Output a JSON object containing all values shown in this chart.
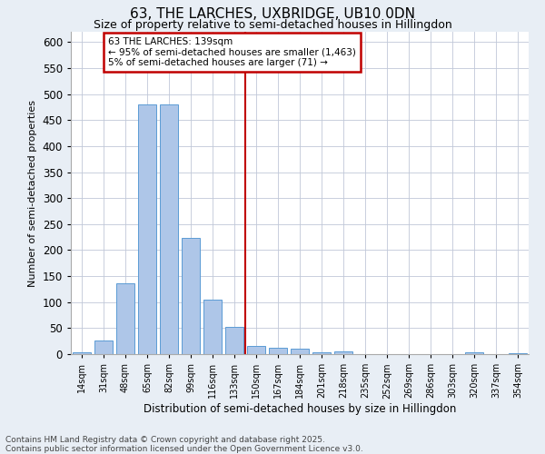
{
  "title": "63, THE LARCHES, UXBRIDGE, UB10 0DN",
  "subtitle": "Size of property relative to semi-detached houses in Hillingdon",
  "xlabel": "Distribution of semi-detached houses by size in Hillingdon",
  "ylabel": "Number of semi-detached properties",
  "categories": [
    "14sqm",
    "31sqm",
    "48sqm",
    "65sqm",
    "82sqm",
    "99sqm",
    "116sqm",
    "133sqm",
    "150sqm",
    "167sqm",
    "184sqm",
    "201sqm",
    "218sqm",
    "235sqm",
    "252sqm",
    "269sqm",
    "286sqm",
    "303sqm",
    "320sqm",
    "337sqm",
    "354sqm"
  ],
  "values": [
    3,
    27,
    136,
    481,
    481,
    224,
    105,
    53,
    15,
    13,
    10,
    4,
    5,
    0,
    0,
    0,
    0,
    0,
    3,
    0,
    1
  ],
  "bar_color": "#aec6e8",
  "bar_edge_color": "#5b9bd5",
  "vline_x": 7.5,
  "vline_color": "#c00000",
  "annotation_text": "63 THE LARCHES: 139sqm\n← 95% of semi-detached houses are smaller (1,463)\n5% of semi-detached houses are larger (71) →",
  "annotation_box_color": "#c00000",
  "ylim": [
    0,
    620
  ],
  "yticks": [
    0,
    50,
    100,
    150,
    200,
    250,
    300,
    350,
    400,
    450,
    500,
    550,
    600
  ],
  "footnote": "Contains HM Land Registry data © Crown copyright and database right 2025.\nContains public sector information licensed under the Open Government Licence v3.0.",
  "bg_color": "#e8eef5",
  "plot_bg_color": "#ffffff",
  "grid_color": "#c0c8d8",
  "title_fontsize": 11,
  "subtitle_fontsize": 9,
  "footnote_fontsize": 6.5
}
